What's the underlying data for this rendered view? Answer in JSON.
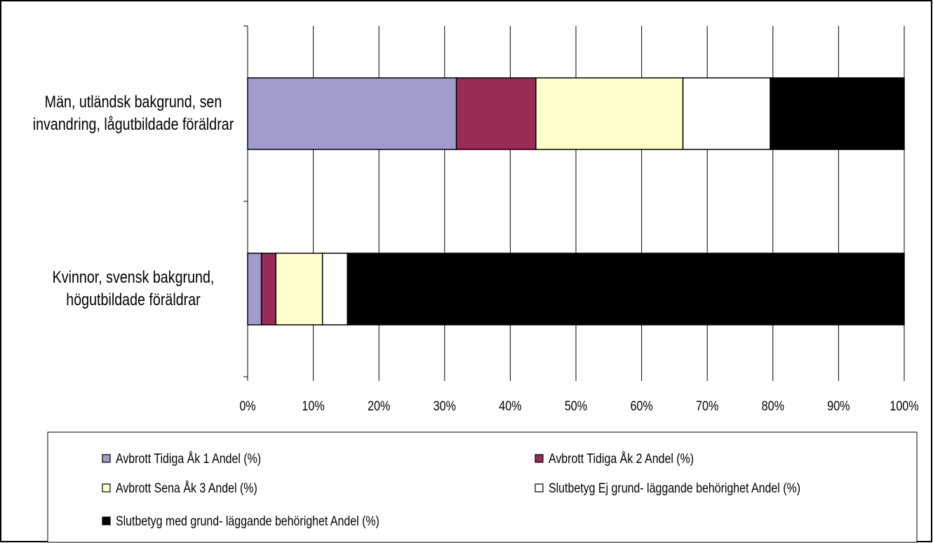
{
  "chart_data": {
    "type": "bar",
    "orientation": "horizontal",
    "stacked": true,
    "percent_axis": true,
    "title": "",
    "xlabel": "",
    "ylabel": "",
    "xlim": [
      0,
      100
    ],
    "x_ticks": [
      "0%",
      "10%",
      "20%",
      "30%",
      "40%",
      "50%",
      "60%",
      "70%",
      "80%",
      "90%",
      "100%"
    ],
    "grid": "vertical",
    "legend_position": "bottom",
    "categories": [
      {
        "lines": [
          "Män, utländsk bakgrund, sen",
          "invandring, lågutbildade föräldrar"
        ]
      },
      {
        "lines": [
          "Kvinnor, svensk bakgrund,",
          "högutbildade föräldrar"
        ]
      }
    ],
    "series": [
      {
        "name": "Avbrott Tidiga Åk 1 Andel (%)",
        "color": "#a09ccc",
        "values": [
          31.8,
          2.1
        ]
      },
      {
        "name": "Avbrott Tidiga Åk 2 Andel (%)",
        "color": "#992b55",
        "values": [
          12.1,
          2.2
        ]
      },
      {
        "name": "Avbrott Sena Åk 3 Andel (%)",
        "color": "#ffffcc",
        "values": [
          22.4,
          7.1
        ]
      },
      {
        "name": "Slutbetyg  Ej grund- läggande behörighet Andel (%)",
        "color": "#ffffff",
        "values": [
          13.3,
          3.8
        ]
      },
      {
        "name": "Slutbetyg  med grund- läggande behörighet Andel (%)",
        "color": "#000000",
        "values": [
          20.4,
          84.8
        ]
      }
    ]
  }
}
